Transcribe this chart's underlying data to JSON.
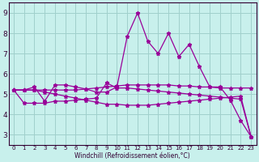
{
  "xlabel": "Windchill (Refroidissement éolien,°C)",
  "bg_color": "#c8f0ec",
  "grid_color": "#a0d0cc",
  "line_color": "#990099",
  "xlim": [
    -0.5,
    23.5
  ],
  "ylim": [
    2.5,
    9.5
  ],
  "xticks": [
    0,
    1,
    2,
    3,
    4,
    5,
    6,
    7,
    8,
    9,
    10,
    11,
    12,
    13,
    14,
    15,
    16,
    17,
    18,
    19,
    20,
    21,
    22,
    23
  ],
  "yticks": [
    3,
    4,
    5,
    6,
    7,
    8,
    9
  ],
  "series": [
    [
      5.2,
      5.2,
      5.35,
      4.65,
      5.45,
      5.45,
      5.35,
      5.25,
      5.1,
      5.1,
      5.35,
      7.85,
      9.0,
      7.6,
      7.0,
      8.0,
      6.85,
      7.45,
      6.35,
      5.35,
      5.35,
      4.7,
      3.7,
      2.9
    ],
    [
      5.2,
      4.55,
      4.55,
      4.55,
      4.65,
      4.65,
      4.7,
      4.75,
      4.8,
      5.55,
      5.3,
      5.3,
      5.25,
      5.2,
      5.15,
      5.1,
      5.05,
      5.0,
      4.95,
      4.9,
      4.85,
      4.8,
      4.75,
      2.9
    ],
    [
      5.2,
      5.2,
      5.2,
      5.2,
      5.2,
      5.2,
      5.2,
      5.25,
      5.3,
      5.35,
      5.4,
      5.45,
      5.45,
      5.45,
      5.45,
      5.45,
      5.4,
      5.4,
      5.35,
      5.35,
      5.3,
      5.3,
      5.3,
      5.3
    ],
    [
      5.2,
      5.2,
      5.2,
      5.1,
      5.0,
      4.9,
      4.8,
      4.7,
      4.6,
      4.5,
      4.5,
      4.45,
      4.45,
      4.45,
      4.5,
      4.55,
      4.6,
      4.65,
      4.7,
      4.75,
      4.8,
      4.85,
      4.9,
      2.9
    ]
  ]
}
